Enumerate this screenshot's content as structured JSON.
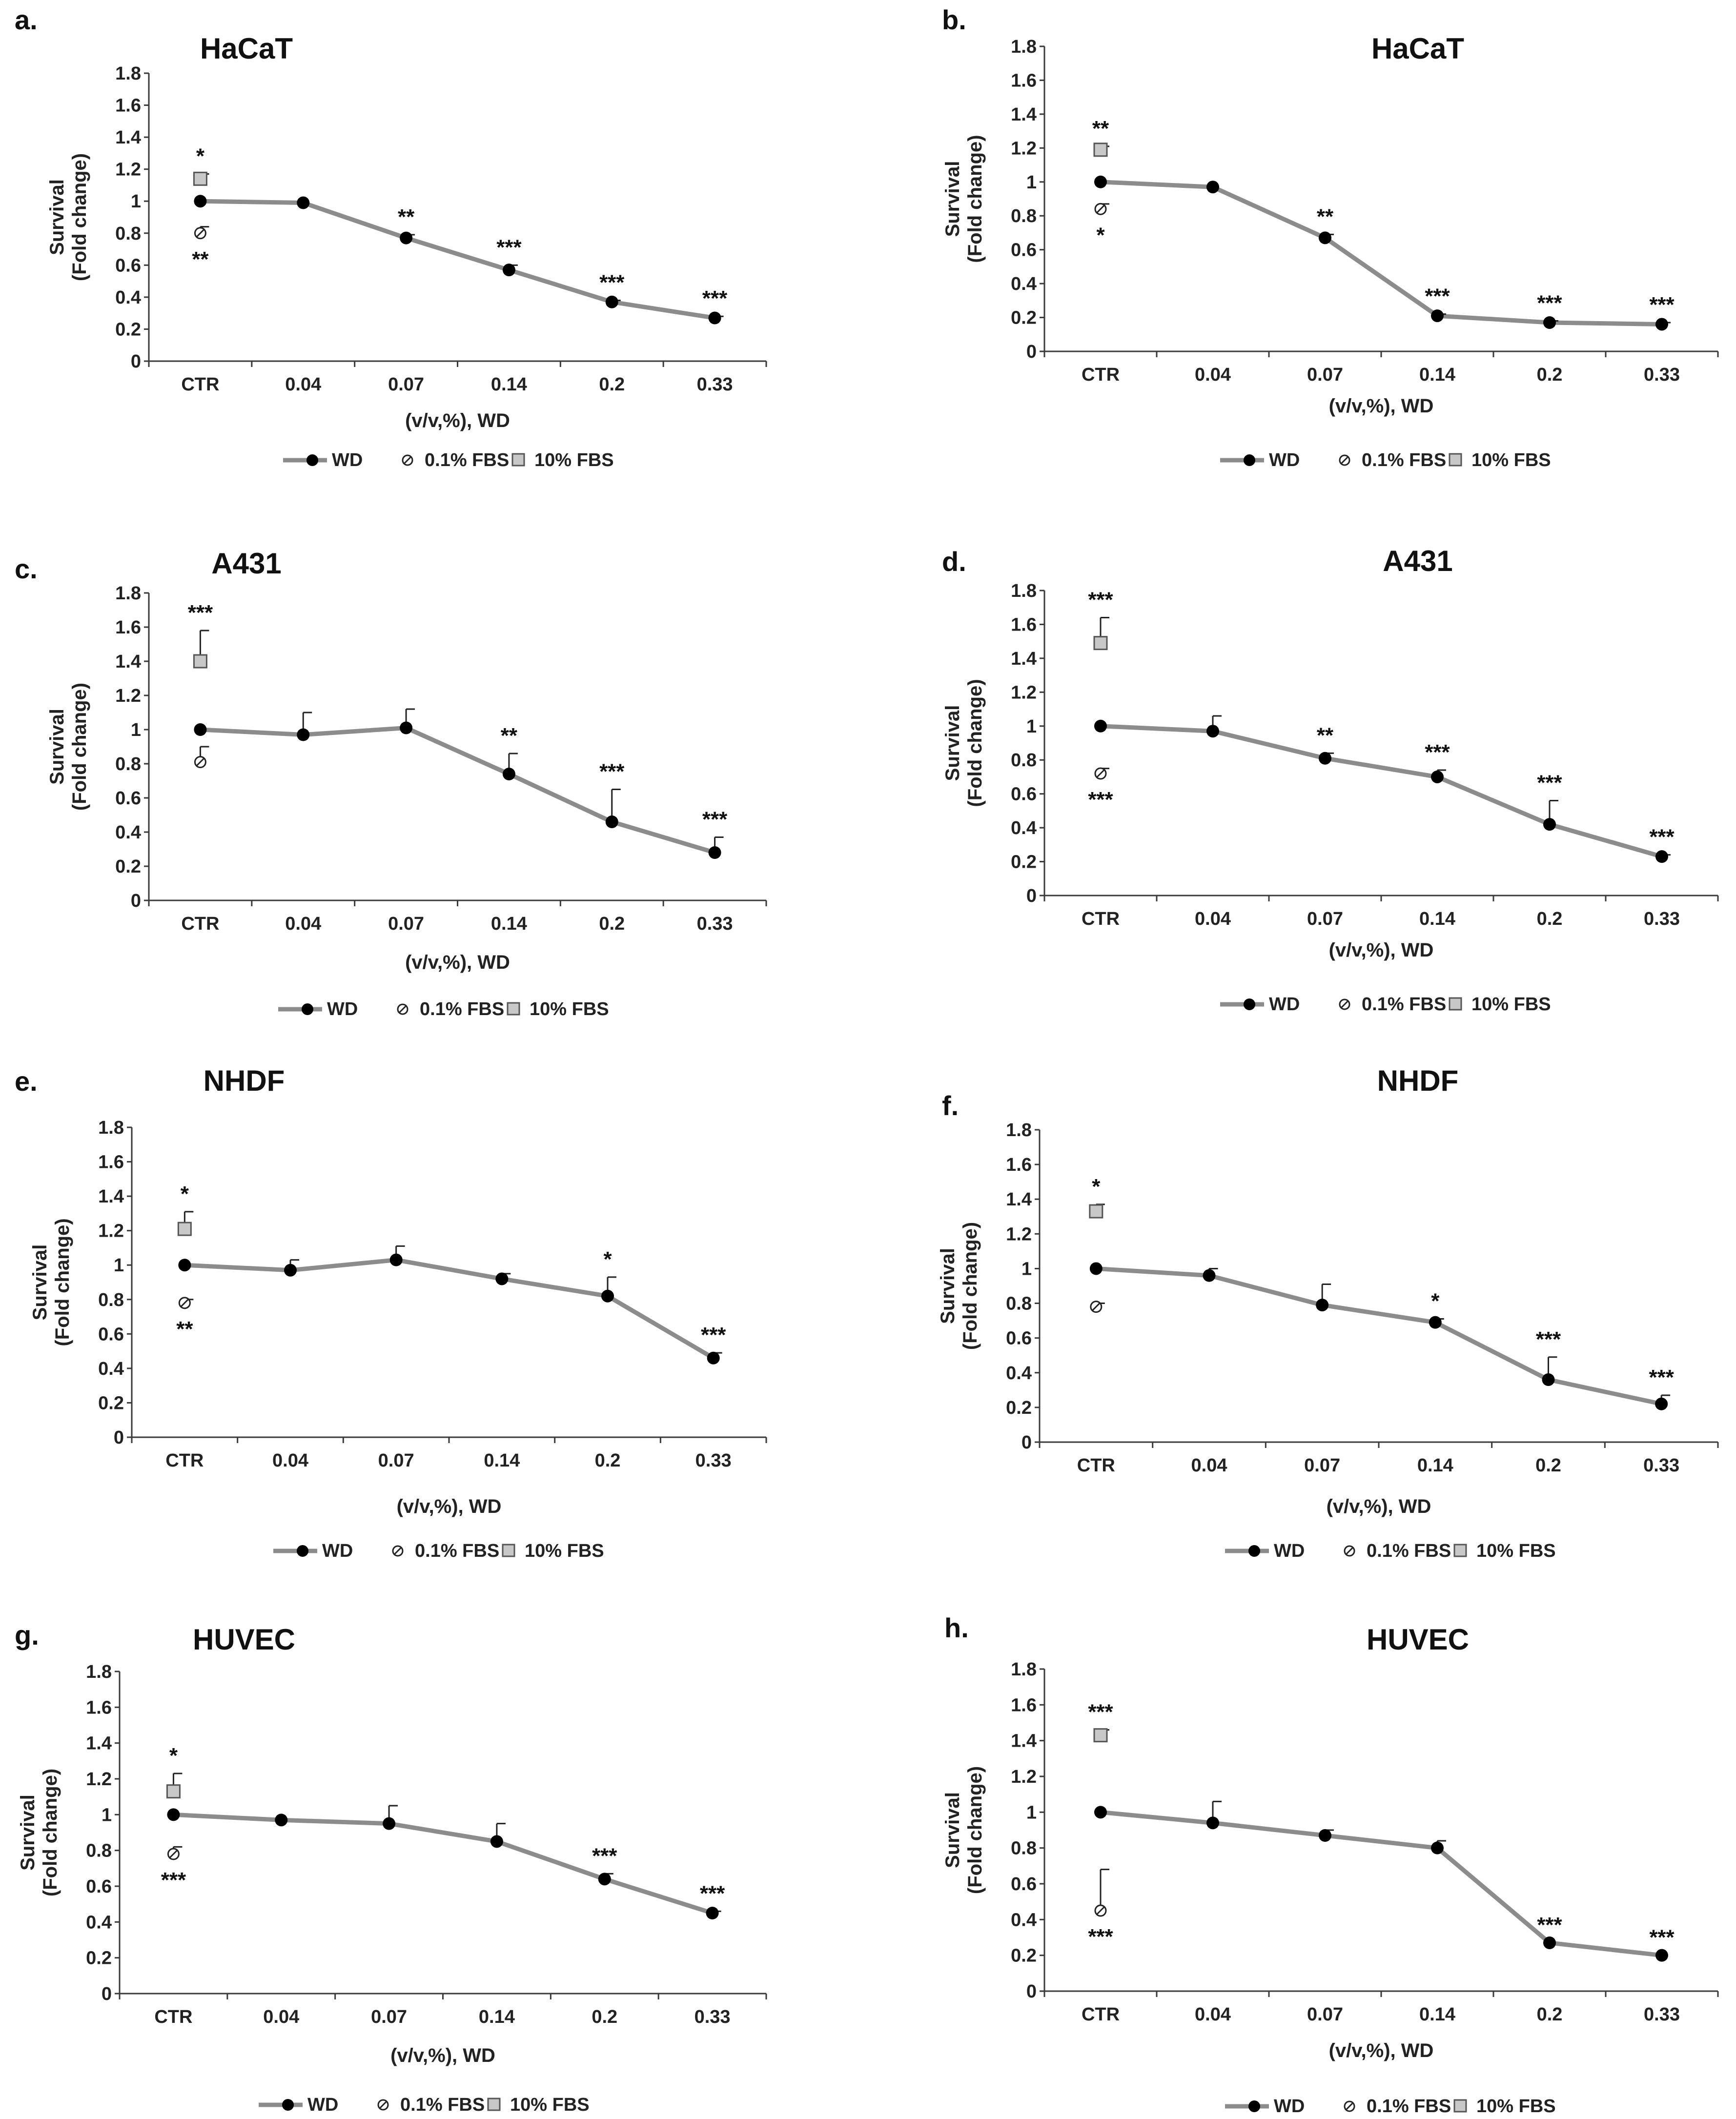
{
  "colors": {
    "line": "#8c8c8c",
    "marker": "#000000",
    "axis": "#3a3a3a",
    "box_fill": "#c8c8c8",
    "box_stroke": "#555555"
  },
  "chart_data": [
    {
      "type": "line",
      "panel": "a.",
      "title": "HaCaT",
      "categories": [
        "CTR",
        "0.04",
        "0.07",
        "0.14",
        "0.2",
        "0.33"
      ],
      "ylabel_line1": "Survival",
      "ylabel_line2": "(Fold change)",
      "xlabel": "(v/v,%), WD",
      "ylim": [
        0,
        1.8
      ],
      "yticks": [
        "0",
        "0.2",
        "0.4",
        "0.6",
        "0.8",
        "1",
        "1.2",
        "1.4",
        "1.6",
        "1.8"
      ],
      "series": [
        {
          "name": "WD",
          "values": [
            1.0,
            0.99,
            0.77,
            0.57,
            0.37,
            0.27
          ],
          "errors": [
            0,
            0,
            0.02,
            0.03,
            0.01,
            0.01
          ],
          "stars": [
            "",
            "",
            "**",
            "***",
            "***",
            "***"
          ]
        }
      ],
      "fbs01": {
        "name": "0.1% FBS",
        "value": 0.8,
        "error": 0.04,
        "star": "**"
      },
      "fbs10": {
        "name": "10% FBS",
        "value": 1.14,
        "error": 0.03,
        "star": "*"
      }
    },
    {
      "type": "line",
      "panel": "b.",
      "title": "HaCaT",
      "categories": [
        "CTR",
        "0.04",
        "0.07",
        "0.14",
        "0.2",
        "0.33"
      ],
      "ylabel_line1": "Survival",
      "ylabel_line2": "(Fold change)",
      "xlabel": "(v/v,%), WD",
      "ylim": [
        0,
        1.8
      ],
      "yticks": [
        "0",
        "0.2",
        "0.4",
        "0.6",
        "0.8",
        "1",
        "1.2",
        "1.4",
        "1.6",
        "1.8"
      ],
      "series": [
        {
          "name": "WD",
          "values": [
            1.0,
            0.97,
            0.67,
            0.21,
            0.17,
            0.16
          ],
          "errors": [
            0,
            0,
            0.02,
            0.01,
            0.01,
            0.01
          ],
          "stars": [
            "",
            "",
            "**",
            "***",
            "***",
            "***"
          ]
        }
      ],
      "fbs01": {
        "name": "0.1% FBS",
        "value": 0.84,
        "error": 0.03,
        "star": "*"
      },
      "fbs10": {
        "name": "10% FBS",
        "value": 1.19,
        "error": 0.02,
        "star": "**"
      }
    },
    {
      "type": "line",
      "panel": "c.",
      "title": "A431",
      "categories": [
        "CTR",
        "0.04",
        "0.07",
        "0.14",
        "0.2",
        "0.33"
      ],
      "ylabel_line1": "Survival",
      "ylabel_line2": "(Fold change)",
      "xlabel": "(v/v,%), WD",
      "ylim": [
        0,
        1.8
      ],
      "yticks": [
        "0",
        "0.2",
        "0.4",
        "0.6",
        "0.8",
        "1",
        "1.2",
        "1.4",
        "1.6",
        "1.8"
      ],
      "series": [
        {
          "name": "WD",
          "values": [
            1.0,
            0.97,
            1.01,
            0.74,
            0.46,
            0.28
          ],
          "errors": [
            0,
            0.13,
            0.11,
            0.12,
            0.19,
            0.09
          ],
          "stars": [
            "",
            "",
            "",
            "**",
            "***",
            "***"
          ]
        }
      ],
      "fbs01": {
        "name": "0.1% FBS",
        "value": 0.81,
        "error": 0.09,
        "star": ""
      },
      "fbs10": {
        "name": "10% FBS",
        "value": 1.4,
        "error": 0.18,
        "star": "***"
      }
    },
    {
      "type": "line",
      "panel": "d.",
      "title": "A431",
      "categories": [
        "CTR",
        "0.04",
        "0.07",
        "0.14",
        "0.2",
        "0.33"
      ],
      "ylabel_line1": "Survival",
      "ylabel_line2": "(Fold change)",
      "xlabel": "(v/v,%), WD",
      "ylim": [
        0,
        1.8
      ],
      "yticks": [
        "0",
        "0.2",
        "0.4",
        "0.6",
        "0.8",
        "1",
        "1.2",
        "1.4",
        "1.6",
        "1.8"
      ],
      "series": [
        {
          "name": "WD",
          "values": [
            1.0,
            0.97,
            0.81,
            0.7,
            0.42,
            0.23
          ],
          "errors": [
            0,
            0.09,
            0.03,
            0.04,
            0.14,
            0.01
          ],
          "stars": [
            "",
            "",
            "**",
            "***",
            "***",
            "***"
          ]
        }
      ],
      "fbs01": {
        "name": "0.1% FBS",
        "value": 0.72,
        "error": 0.03,
        "star": "***"
      },
      "fbs10": {
        "name": "10% FBS",
        "value": 1.49,
        "error": 0.15,
        "star": "***"
      }
    },
    {
      "type": "line",
      "panel": "e.",
      "title": "NHDF",
      "categories": [
        "CTR",
        "0.04",
        "0.07",
        "0.14",
        "0.2",
        "0.33"
      ],
      "ylabel_line1": "Survival",
      "ylabel_line2": "(Fold change)",
      "xlabel": "(v/v,%), WD",
      "ylim": [
        0,
        1.8
      ],
      "yticks": [
        "0",
        "0.2",
        "0.4",
        "0.6",
        "0.8",
        "1",
        "1.2",
        "1.4",
        "1.6",
        "1.8"
      ],
      "series": [
        {
          "name": "WD",
          "values": [
            1.0,
            0.97,
            1.03,
            0.92,
            0.82,
            0.46
          ],
          "errors": [
            0,
            0.06,
            0.08,
            0.03,
            0.11,
            0.03
          ],
          "stars": [
            "",
            "",
            "",
            "",
            "*",
            "***"
          ]
        }
      ],
      "fbs01": {
        "name": "0.1% FBS",
        "value": 0.78,
        "error": 0.02,
        "star": "**"
      },
      "fbs10": {
        "name": "10% FBS",
        "value": 1.21,
        "error": 0.1,
        "star": "*"
      }
    },
    {
      "type": "line",
      "panel": "f.",
      "title": "NHDF",
      "categories": [
        "CTR",
        "0.04",
        "0.07",
        "0.14",
        "0.2",
        "0.33"
      ],
      "ylabel_line1": "Survival",
      "ylabel_line2": "(Fold change)",
      "xlabel": "(v/v,%), WD",
      "ylim": [
        0,
        1.8
      ],
      "yticks": [
        "0",
        "0.2",
        "0.4",
        "0.6",
        "0.8",
        "1",
        "1.2",
        "1.4",
        "1.6",
        "1.8"
      ],
      "series": [
        {
          "name": "WD",
          "values": [
            1.0,
            0.96,
            0.79,
            0.69,
            0.36,
            0.22
          ],
          "errors": [
            0,
            0.04,
            0.12,
            0.02,
            0.13,
            0.05
          ],
          "stars": [
            "",
            "",
            "",
            "*",
            "***",
            "***"
          ]
        }
      ],
      "fbs01": {
        "name": "0.1% FBS",
        "value": 0.78,
        "error": 0.02,
        "star": ""
      },
      "fbs10": {
        "name": "10% FBS",
        "value": 1.33,
        "error": 0.04,
        "star": "*"
      }
    },
    {
      "type": "line",
      "panel": "g.",
      "title": "HUVEC",
      "categories": [
        "CTR",
        "0.04",
        "0.07",
        "0.14",
        "0.2",
        "0.33"
      ],
      "ylabel_line1": "Survival",
      "ylabel_line2": "(Fold change)",
      "xlabel": "(v/v,%), WD",
      "ylim": [
        0,
        1.8
      ],
      "yticks": [
        "0",
        "0.2",
        "0.4",
        "0.6",
        "0.8",
        "1",
        "1.2",
        "1.4",
        "1.6",
        "1.8"
      ],
      "series": [
        {
          "name": "WD",
          "values": [
            1.0,
            0.97,
            0.95,
            0.85,
            0.64,
            0.45
          ],
          "errors": [
            0,
            0,
            0.1,
            0.1,
            0.03,
            0.01
          ],
          "stars": [
            "",
            "",
            "",
            "",
            "***",
            "***"
          ]
        }
      ],
      "fbs01": {
        "name": "0.1% FBS",
        "value": 0.78,
        "error": 0.04,
        "star": "***"
      },
      "fbs10": {
        "name": "10% FBS",
        "value": 1.13,
        "error": 0.1,
        "star": "*"
      }
    },
    {
      "type": "line",
      "panel": "h.",
      "title": "HUVEC",
      "categories": [
        "CTR",
        "0.04",
        "0.07",
        "0.14",
        "0.2",
        "0.33"
      ],
      "ylabel_line1": "Survival",
      "ylabel_line2": "(Fold change)",
      "xlabel": "(v/v,%), WD",
      "ylim": [
        0,
        1.8
      ],
      "yticks": [
        "0",
        "0.2",
        "0.4",
        "0.6",
        "0.8",
        "1",
        "1.2",
        "1.4",
        "1.6",
        "1.8"
      ],
      "series": [
        {
          "name": "WD",
          "values": [
            1.0,
            0.94,
            0.87,
            0.8,
            0.27,
            0.2
          ],
          "errors": [
            0,
            0.12,
            0.03,
            0.04,
            0,
            0
          ],
          "stars": [
            "",
            "",
            "",
            "",
            "***",
            "***"
          ]
        }
      ],
      "fbs01": {
        "name": "0.1% FBS",
        "value": 0.45,
        "error": 0.23,
        "star": "***"
      },
      "fbs10": {
        "name": "10% FBS",
        "value": 1.43,
        "error": 0.03,
        "star": "***"
      }
    }
  ]
}
